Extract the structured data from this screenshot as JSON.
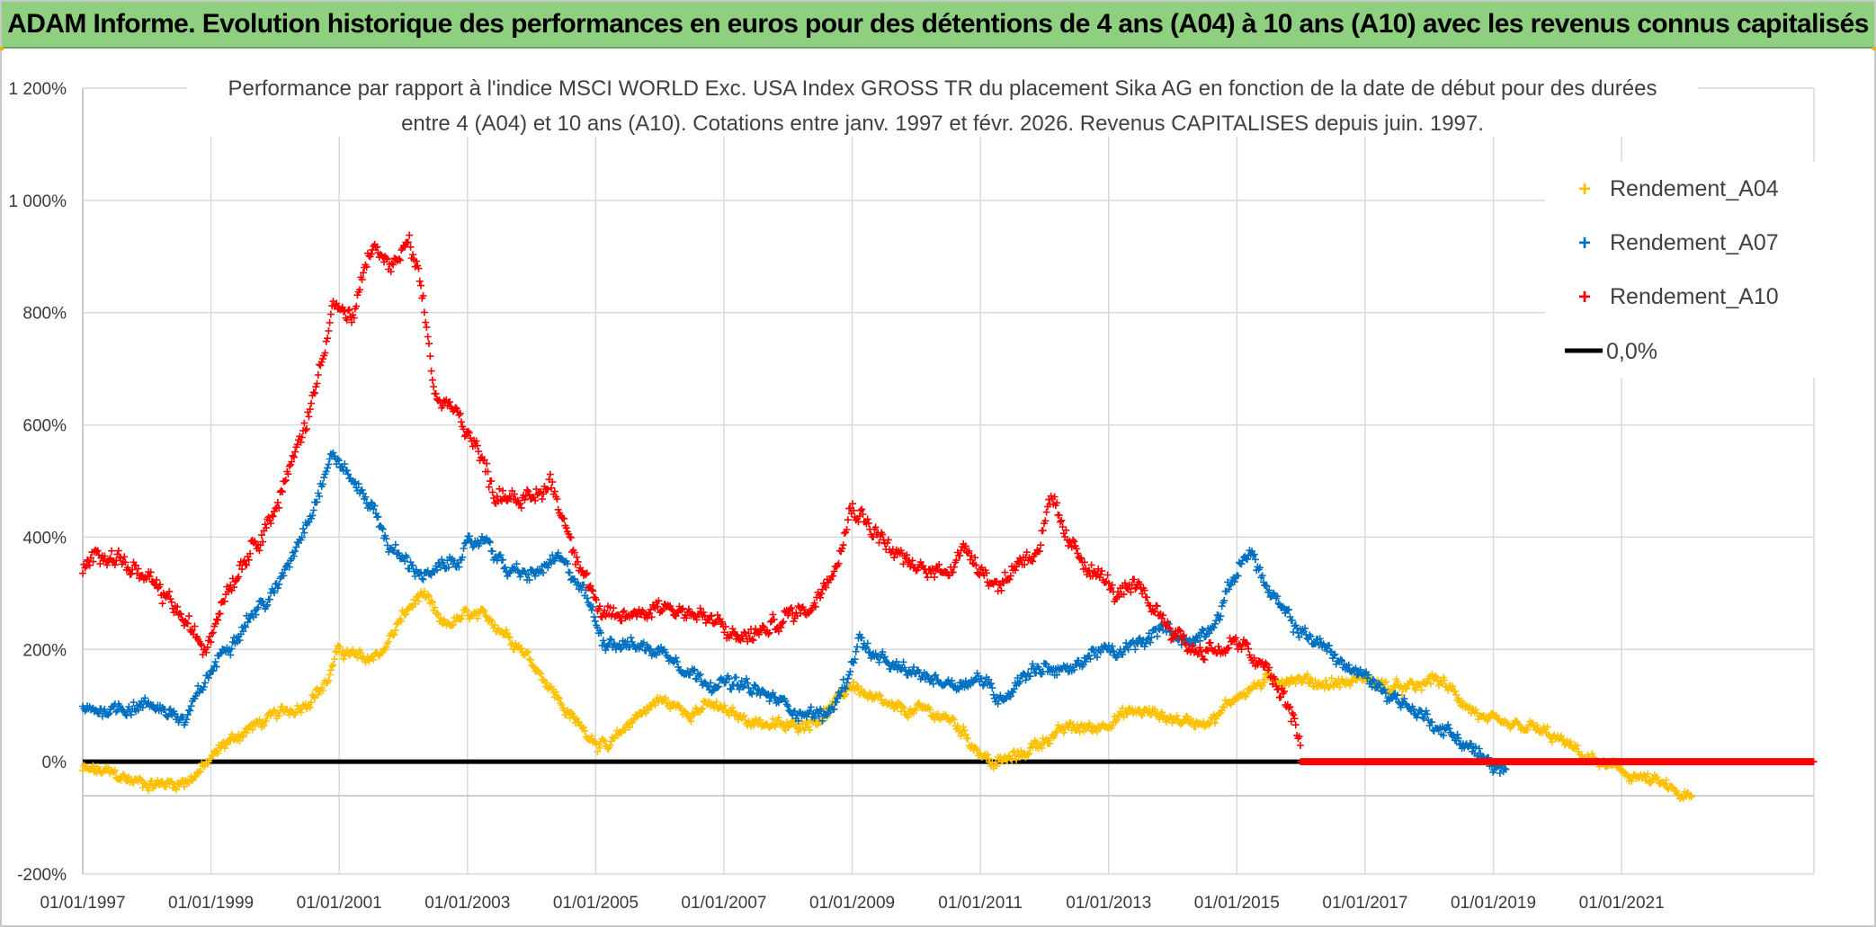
{
  "header": {
    "title": "ADAM Informe. Evolution historique des performances en euros pour des détentions de 4 ans (A04) à 10 ans (A10) avec les revenus connus capitalisés"
  },
  "chart_data": {
    "type": "scatter",
    "title_line1": "Performance par rapport à l'indice MSCI WORLD Exc. USA Index GROSS TR  du placement Sika AG en fonction de la date de début pour des durées",
    "title_line2": "entre 4 (A04) et 10 ans (A10). Cotations entre janv. 1997 et févr. 2026. Revenus CAPITALISES depuis juin. 1997.",
    "xlabel": "",
    "ylabel": "",
    "xlim": [
      1997.0,
      2024.0
    ],
    "ylim": [
      -200,
      1200
    ],
    "y_ticks": [
      -200,
      0,
      200,
      400,
      600,
      800,
      1000,
      1200
    ],
    "y_tick_labels": [
      "-200%",
      "0%",
      "200%",
      "400%",
      "600%",
      "800%",
      "1 000%",
      "1 200%"
    ],
    "x_ticks": [
      1997,
      1999,
      2001,
      2003,
      2005,
      2007,
      2009,
      2011,
      2013,
      2015,
      2017,
      2019,
      2021
    ],
    "x_tick_labels": [
      "01/01/1997",
      "01/01/1999",
      "01/01/2001",
      "01/01/2003",
      "01/01/2005",
      "01/01/2007",
      "01/01/2009",
      "01/01/2011",
      "01/01/2013",
      "01/01/2015",
      "01/01/2017",
      "01/01/2019",
      "01/01/2021"
    ],
    "grid": true,
    "legend_position": "top-right",
    "series": [
      {
        "name": "Rendement_A04",
        "color": "#ffc000",
        "noise": 12,
        "points": [
          [
            1997.0,
            -15
          ],
          [
            1997.4,
            -20
          ],
          [
            1997.8,
            -35
          ],
          [
            1998.2,
            -40
          ],
          [
            1998.6,
            -35
          ],
          [
            1998.9,
            -10
          ],
          [
            1999.2,
            30
          ],
          [
            1999.6,
            60
          ],
          [
            2000.0,
            80
          ],
          [
            2000.4,
            100
          ],
          [
            2000.8,
            140
          ],
          [
            2001.0,
            200
          ],
          [
            2001.4,
            180
          ],
          [
            2001.7,
            200
          ],
          [
            2002.0,
            260
          ],
          [
            2002.3,
            300
          ],
          [
            2002.6,
            240
          ],
          [
            2003.0,
            260
          ],
          [
            2003.4,
            250
          ],
          [
            2003.8,
            210
          ],
          [
            2004.2,
            150
          ],
          [
            2004.6,
            80
          ],
          [
            2004.9,
            50
          ],
          [
            2005.2,
            20
          ],
          [
            2005.6,
            80
          ],
          [
            2006.0,
            110
          ],
          [
            2006.4,
            90
          ],
          [
            2006.8,
            100
          ],
          [
            2007.2,
            80
          ],
          [
            2007.6,
            70
          ],
          [
            2008.0,
            60
          ],
          [
            2008.5,
            80
          ],
          [
            2008.8,
            110
          ],
          [
            2009.0,
            140
          ],
          [
            2009.3,
            110
          ],
          [
            2009.7,
            90
          ],
          [
            2010.2,
            90
          ],
          [
            2010.6,
            70
          ],
          [
            2010.9,
            30
          ],
          [
            2011.2,
            -5
          ],
          [
            2011.6,
            10
          ],
          [
            2012.0,
            40
          ],
          [
            2012.4,
            60
          ],
          [
            2012.8,
            60
          ],
          [
            2013.1,
            80
          ],
          [
            2013.5,
            90
          ],
          [
            2013.9,
            80
          ],
          [
            2014.3,
            70
          ],
          [
            2014.7,
            80
          ],
          [
            2015.0,
            120
          ],
          [
            2015.4,
            140
          ],
          [
            2015.8,
            150
          ],
          [
            2016.3,
            140
          ],
          [
            2016.7,
            140
          ],
          [
            2017.0,
            150
          ],
          [
            2017.4,
            130
          ],
          [
            2017.8,
            130
          ],
          [
            2018.1,
            150
          ],
          [
            2018.5,
            110
          ],
          [
            2018.9,
            70
          ],
          [
            2019.2,
            60
          ],
          [
            2019.6,
            60
          ],
          [
            2020.0,
            40
          ],
          [
            2020.4,
            10
          ],
          [
            2020.8,
            -10
          ],
          [
            2021.2,
            -25
          ],
          [
            2021.6,
            -40
          ],
          [
            2021.9,
            -60
          ],
          [
            2022.1,
            -65
          ]
        ]
      },
      {
        "name": "Rendement_A07",
        "color": "#0070c0",
        "noise": 14,
        "points": [
          [
            1997.0,
            90
          ],
          [
            1997.4,
            95
          ],
          [
            1997.8,
            100
          ],
          [
            1998.2,
            100
          ],
          [
            1998.6,
            70
          ],
          [
            1998.9,
            140
          ],
          [
            1999.2,
            200
          ],
          [
            1999.6,
            260
          ],
          [
            2000.0,
            300
          ],
          [
            2000.3,
            380
          ],
          [
            2000.6,
            460
          ],
          [
            2000.9,
            550
          ],
          [
            2001.2,
            500
          ],
          [
            2001.5,
            460
          ],
          [
            2001.8,
            380
          ],
          [
            2002.1,
            350
          ],
          [
            2002.4,
            330
          ],
          [
            2002.7,
            350
          ],
          [
            2003.0,
            380
          ],
          [
            2003.3,
            400
          ],
          [
            2003.6,
            340
          ],
          [
            2004.0,
            330
          ],
          [
            2004.4,
            360
          ],
          [
            2004.8,
            310
          ],
          [
            2005.1,
            220
          ],
          [
            2005.5,
            210
          ],
          [
            2005.9,
            200
          ],
          [
            2006.2,
            190
          ],
          [
            2006.6,
            150
          ],
          [
            2007.0,
            140
          ],
          [
            2007.4,
            130
          ],
          [
            2007.8,
            110
          ],
          [
            2008.2,
            90
          ],
          [
            2008.6,
            80
          ],
          [
            2008.9,
            140
          ],
          [
            2009.1,
            220
          ],
          [
            2009.4,
            180
          ],
          [
            2009.8,
            160
          ],
          [
            2010.2,
            150
          ],
          [
            2010.6,
            140
          ],
          [
            2011.0,
            150
          ],
          [
            2011.3,
            110
          ],
          [
            2011.7,
            160
          ],
          [
            2012.0,
            170
          ],
          [
            2012.4,
            160
          ],
          [
            2012.8,
            200
          ],
          [
            2013.1,
            190
          ],
          [
            2013.5,
            210
          ],
          [
            2013.9,
            240
          ],
          [
            2014.3,
            210
          ],
          [
            2014.7,
            260
          ],
          [
            2015.0,
            340
          ],
          [
            2015.2,
            380
          ],
          [
            2015.5,
            300
          ],
          [
            2015.9,
            240
          ],
          [
            2016.3,
            210
          ],
          [
            2016.7,
            170
          ],
          [
            2017.0,
            150
          ],
          [
            2017.4,
            120
          ],
          [
            2017.8,
            90
          ],
          [
            2018.2,
            60
          ],
          [
            2018.6,
            30
          ],
          [
            2018.9,
            0
          ],
          [
            2019.1,
            -15
          ],
          [
            2019.2,
            -25
          ]
        ]
      },
      {
        "name": "Rendement_A10",
        "color": "#ff0000",
        "noise": 18,
        "points": [
          [
            1997.0,
            340
          ],
          [
            1997.3,
            380
          ],
          [
            1997.6,
            360
          ],
          [
            1998.0,
            320
          ],
          [
            1998.4,
            280
          ],
          [
            1998.7,
            230
          ],
          [
            1998.9,
            200
          ],
          [
            1999.2,
            300
          ],
          [
            1999.6,
            380
          ],
          [
            2000.0,
            450
          ],
          [
            2000.3,
            540
          ],
          [
            2000.6,
            650
          ],
          [
            2000.9,
            820
          ],
          [
            2001.2,
            780
          ],
          [
            2001.5,
            920
          ],
          [
            2001.8,
            880
          ],
          [
            2002.1,
            920
          ],
          [
            2002.3,
            820
          ],
          [
            2002.5,
            650
          ],
          [
            2002.8,
            620
          ],
          [
            2003.1,
            580
          ],
          [
            2003.4,
            480
          ],
          [
            2003.7,
            480
          ],
          [
            2004.0,
            460
          ],
          [
            2004.3,
            500
          ],
          [
            2004.6,
            400
          ],
          [
            2004.9,
            320
          ],
          [
            2005.1,
            250
          ],
          [
            2005.5,
            260
          ],
          [
            2006.0,
            280
          ],
          [
            2006.4,
            270
          ],
          [
            2006.8,
            250
          ],
          [
            2007.2,
            220
          ],
          [
            2007.6,
            230
          ],
          [
            2008.0,
            260
          ],
          [
            2008.4,
            280
          ],
          [
            2008.8,
            380
          ],
          [
            2009.0,
            460
          ],
          [
            2009.3,
            420
          ],
          [
            2009.6,
            380
          ],
          [
            2010.0,
            340
          ],
          [
            2010.4,
            340
          ],
          [
            2010.8,
            380
          ],
          [
            2011.0,
            350
          ],
          [
            2011.3,
            310
          ],
          [
            2011.6,
            360
          ],
          [
            2011.9,
            380
          ],
          [
            2012.1,
            460
          ],
          [
            2012.4,
            380
          ],
          [
            2012.8,
            340
          ],
          [
            2013.1,
            300
          ],
          [
            2013.5,
            300
          ],
          [
            2013.9,
            250
          ],
          [
            2014.3,
            200
          ],
          [
            2014.7,
            200
          ],
          [
            2015.0,
            210
          ],
          [
            2015.4,
            170
          ],
          [
            2015.7,
            120
          ],
          [
            2015.9,
            70
          ],
          [
            2016.0,
            30
          ]
        ]
      },
      {
        "name": "0,0%",
        "color": "#000000",
        "type": "line",
        "points": [
          [
            1997.0,
            0
          ],
          [
            2016.0,
            0
          ]
        ]
      }
    ],
    "zero_red_segment": [
      2016.0,
      2024.0
    ]
  }
}
